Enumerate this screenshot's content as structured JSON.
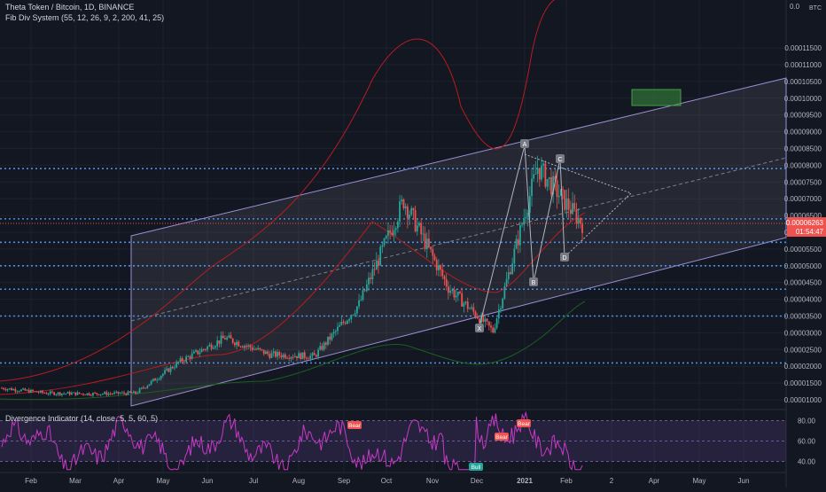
{
  "header": {
    "symbol_title": "Theta Token / Bitcoin, 1D, BINANCE",
    "indicator1": "Fib Div System (55, 12, 26, 9, 2, 200, 41, 25)",
    "indicator2": "Divergence Indicator (14, close, 5, 5, 60, 5)"
  },
  "price_axis": {
    "currency": "BTC",
    "top_label": "0.0",
    "last_price": "0.00006263",
    "countdown": "01:54:47"
  },
  "colors": {
    "background": "#131722",
    "up": "#26a69a",
    "down": "#ef5350",
    "grid": "#1e222d",
    "dotted_blue": "#2962ff",
    "channel": "#9c8fd6",
    "osc": "#c839c5",
    "green_box": "#1b5e20"
  },
  "chart_data": [
    {
      "type": "candlestick",
      "title": "Theta Token / Bitcoin, 1D, BINANCE",
      "x_ticks": [
        "Feb",
        "Mar",
        "Apr",
        "May",
        "Jun",
        "Jul",
        "Aug",
        "Sep",
        "Oct",
        "Nov",
        "Dec",
        "2021",
        "Feb",
        "2",
        "Apr",
        "May",
        "Jun"
      ],
      "y_ticks": [
        "0.00001000",
        "0.00001500",
        "0.00002000",
        "0.00002500",
        "0.00003000",
        "0.00003500",
        "0.00004000",
        "0.00004500",
        "0.00005000",
        "0.00005500",
        "0.00006000",
        "0.00006500",
        "0.00007000",
        "0.00007500",
        "0.00008000",
        "0.00008500",
        "0.00009000",
        "0.00009500",
        "0.00010000",
        "0.00010500",
        "0.00011000",
        "0.00011500"
      ],
      "series": [
        {
          "name": "close",
          "approx_close_path": [
            [
              "Jan",
              1.35e-05
            ],
            [
              "Feb",
              1.2e-05
            ],
            [
              "Mar",
              1.18e-05
            ],
            [
              "Apr",
              1.2e-05
            ],
            [
              "May",
              2.15e-05
            ],
            [
              "Jun",
              2.85e-05
            ],
            [
              "Jul",
              2.35e-05
            ],
            [
              "Aug",
              2.3e-05
            ],
            [
              "Sep",
              3.85e-05
            ],
            [
              "Oct",
              6.95e-05
            ],
            [
              "Nov",
              4.35e-05
            ],
            [
              "Dec",
              3.05e-05
            ],
            [
              "2021",
              7.95e-05
            ],
            [
              "Feb",
              6.25e-05
            ]
          ]
        }
      ],
      "horizontal_levels": [
        2.1e-05,
        3.5e-05,
        4.3e-05,
        5e-05,
        5.7e-05,
        6.4e-05,
        7.9e-05
      ],
      "pattern_labels": [
        "A",
        "B",
        "C",
        "D",
        "X"
      ],
      "last_price": 6.263e-05
    },
    {
      "type": "line",
      "title": "Divergence Indicator (14, close, 5, 5, 60, 5)",
      "y_ticks": [
        "80.00",
        "60.00",
        "40.00"
      ],
      "ylim": [
        30,
        90
      ],
      "annotations": [
        "Bear",
        "Bear",
        "Bear",
        "Bull"
      ]
    }
  ]
}
